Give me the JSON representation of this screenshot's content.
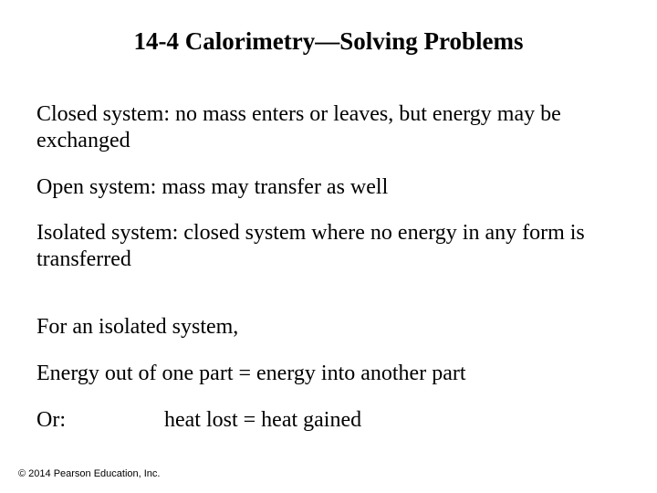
{
  "title": "14-4 Calorimetry—Solving Problems",
  "paragraphs": {
    "closed_system": "Closed system: no mass enters or leaves, but energy may be exchanged",
    "open_system": "Open system: mass may transfer as well",
    "isolated_system": "Isolated system: closed system where no energy in any form is transferred",
    "for_isolated": "For an isolated system,",
    "energy_equation": "Energy out of one part = energy into another part",
    "or_label": "Or:",
    "heat_equation": "heat lost = heat gained"
  },
  "copyright": "© 2014 Pearson Education, Inc.",
  "styling": {
    "background_color": "#ffffff",
    "text_color": "#000000",
    "title_fontsize": 27,
    "body_fontsize": 24,
    "copyright_fontsize": 11,
    "font_family": "Times New Roman",
    "copyright_font_family": "Arial"
  }
}
